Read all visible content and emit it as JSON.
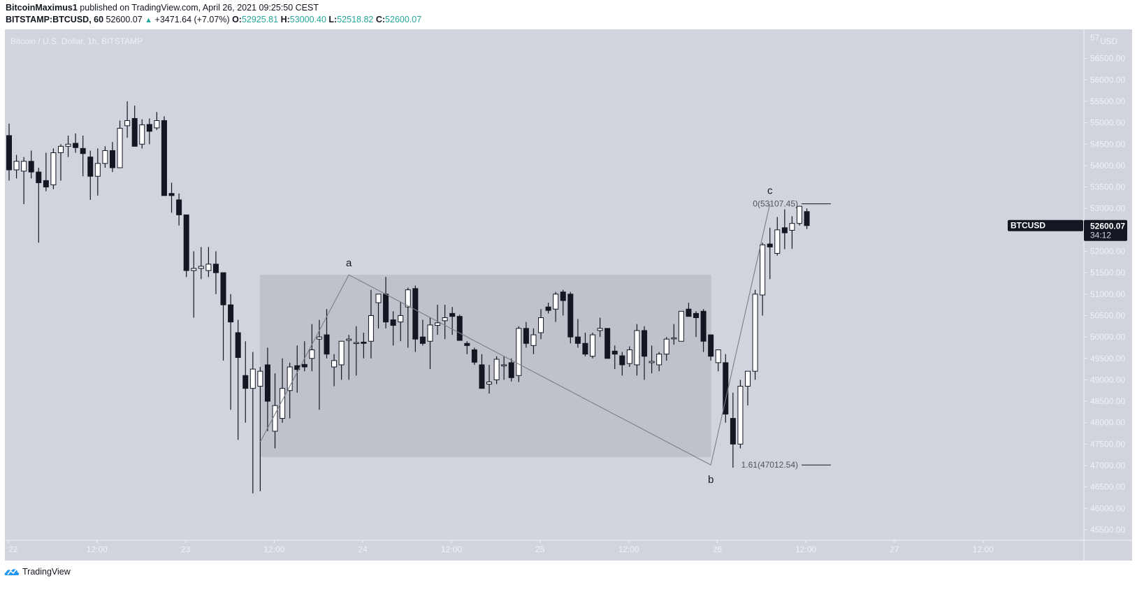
{
  "header": {
    "author": "BitcoinMaximus1",
    "published_text": "published on TradingView.com, April 26, 2021 09:25:50 CEST",
    "symbol": "BITSTAMP:BTCUSD, 60",
    "last": "52600.07",
    "change": "+3471.64 (+7.07%)",
    "o_label": "O:",
    "o": "52925.81",
    "h_label": "H:",
    "h": "53000.40",
    "l_label": "L:",
    "l": "52518.82",
    "c_label": "C:",
    "c": "52600.07"
  },
  "legend": {
    "title": "Bitcoin / U.S. Dollar, 1h, BITSTAMP"
  },
  "price_axis": {
    "currency": "USD",
    "top_partial": "57",
    "labels": [
      "56500.00",
      "56000.00",
      "55500.00",
      "55000.00",
      "54500.00",
      "54000.00",
      "53500.00",
      "53000.00",
      "52000.00",
      "51500.00",
      "51000.00",
      "50500.00",
      "50000.00",
      "49500.00",
      "49000.00",
      "48500.00",
      "48000.00",
      "47500.00",
      "47000.00",
      "46500.00",
      "46000.00",
      "45500.00"
    ],
    "current_symbol": "BTCUSD",
    "current_price": "52600.07",
    "countdown": "34:12"
  },
  "time_axis": {
    "labels": [
      "22",
      "12:00",
      "23",
      "12:00",
      "24",
      "12:00",
      "25",
      "12:00",
      "26",
      "12:00",
      "27",
      "12:00"
    ]
  },
  "annotations": {
    "wave_a": "a",
    "wave_b": "b",
    "wave_c": "c",
    "fib_0": "0(53107.45)",
    "fib_161": "1.61(47012.54)"
  },
  "footer": {
    "brand": "TradingView"
  },
  "colors": {
    "background": "#d1d4dc",
    "bull_body": "#ffffff",
    "bear_body": "#131722",
    "range_box": "#bfc2ca",
    "up_text": "#26a69a"
  },
  "chart_data": {
    "type": "candlestick",
    "title": "Bitcoin / U.S. Dollar, 1h, BITSTAMP",
    "symbol": "BITSTAMP:BTCUSD",
    "interval": "1h",
    "ylabel": "USD",
    "ylim": [
      45300,
      57000
    ],
    "x_ticks": [
      "22",
      "12:00",
      "23",
      "12:00",
      "24",
      "12:00",
      "25",
      "12:00",
      "26",
      "12:00",
      "27",
      "12:00"
    ],
    "candle_format": "[open, high, low, close]",
    "candles": [
      [
        54700,
        54980,
        53650,
        53900
      ],
      [
        53900,
        54250,
        53700,
        54100
      ],
      [
        53870,
        54200,
        53100,
        54100
      ],
      [
        54100,
        54350,
        53700,
        53850
      ],
      [
        53850,
        53950,
        52200,
        53600
      ],
      [
        53650,
        54300,
        53400,
        53500
      ],
      [
        53550,
        54400,
        53450,
        54300
      ],
      [
        54300,
        54500,
        53650,
        54450
      ],
      [
        54450,
        54700,
        54200,
        54500
      ],
      [
        54520,
        54750,
        54300,
        54420
      ],
      [
        54400,
        54700,
        53750,
        54280
      ],
      [
        54200,
        54350,
        53200,
        53750
      ],
      [
        53750,
        54400,
        53300,
        54050
      ],
      [
        54050,
        54450,
        53950,
        54350
      ],
      [
        54350,
        54550,
        53850,
        53950
      ],
      [
        53950,
        55050,
        53950,
        54870
      ],
      [
        54930,
        55500,
        54650,
        55050
      ],
      [
        55100,
        55400,
        54450,
        54450
      ],
      [
        54500,
        55080,
        54400,
        54950
      ],
      [
        54960,
        55100,
        54500,
        54800
      ],
      [
        54880,
        55250,
        54830,
        55050
      ],
      [
        55050,
        55150,
        53300,
        53300
      ],
      [
        53350,
        53600,
        52900,
        53300
      ],
      [
        53200,
        53350,
        52600,
        52850
      ],
      [
        52850,
        52850,
        51400,
        51550
      ],
      [
        51550,
        52000,
        50450,
        51600
      ],
      [
        51600,
        52100,
        51350,
        51650
      ],
      [
        51550,
        52100,
        51400,
        51700
      ],
      [
        51700,
        52000,
        51000,
        51500
      ],
      [
        51500,
        51500,
        49450,
        50750
      ],
      [
        50750,
        51000,
        48300,
        50350
      ],
      [
        50100,
        50400,
        47600,
        49520
      ],
      [
        49100,
        49900,
        48000,
        48800
      ],
      [
        48800,
        49650,
        46350,
        49250
      ],
      [
        48850,
        49300,
        46400,
        49200
      ],
      [
        49350,
        49750,
        47800,
        48500
      ],
      [
        47800,
        49150,
        47400,
        48400
      ],
      [
        48100,
        49500,
        48000,
        48800
      ],
      [
        48750,
        49400,
        48100,
        49300
      ],
      [
        49330,
        49800,
        48700,
        49240
      ],
      [
        49360,
        49900,
        49200,
        49300
      ],
      [
        49500,
        50300,
        49200,
        49700
      ],
      [
        49950,
        50400,
        48300,
        50000
      ],
      [
        50050,
        50650,
        49500,
        49600
      ],
      [
        49300,
        49600,
        48850,
        49450
      ],
      [
        49350,
        49900,
        49000,
        49900
      ],
      [
        49920,
        50050,
        49000,
        49950
      ],
      [
        49870,
        50250,
        49100,
        49870
      ],
      [
        49880,
        50100,
        49500,
        49850
      ],
      [
        49900,
        51100,
        49500,
        50500
      ],
      [
        50800,
        51000,
        50200,
        51000
      ],
      [
        51000,
        51400,
        50200,
        50350
      ],
      [
        50400,
        50600,
        49800,
        50270
      ],
      [
        50350,
        50820,
        49900,
        50500
      ],
      [
        50700,
        51150,
        49750,
        51100
      ],
      [
        51130,
        51200,
        49650,
        49950
      ],
      [
        50000,
        50400,
        49800,
        49850
      ],
      [
        49900,
        50450,
        49250,
        50280
      ],
      [
        50270,
        50750,
        50050,
        50330
      ],
      [
        50380,
        50750,
        49950,
        50450
      ],
      [
        50550,
        50700,
        50050,
        50480
      ],
      [
        50480,
        50520,
        50000,
        49920
      ],
      [
        49850,
        49900,
        49600,
        49800
      ],
      [
        49700,
        49750,
        49350,
        49410
      ],
      [
        49350,
        49600,
        48900,
        48800
      ],
      [
        48900,
        49350,
        48680,
        48950
      ],
      [
        49000,
        49550,
        48900,
        49480
      ],
      [
        49350,
        49550,
        49000,
        49350
      ],
      [
        49400,
        49500,
        48960,
        49050
      ],
      [
        49100,
        50250,
        48950,
        50200
      ],
      [
        50200,
        50350,
        49750,
        49850
      ],
      [
        49800,
        50200,
        49600,
        50050
      ],
      [
        50100,
        50650,
        49950,
        50450
      ],
      [
        50700,
        50800,
        50550,
        50620
      ],
      [
        50650,
        51050,
        50350,
        51000
      ],
      [
        51050,
        51100,
        50500,
        50850
      ],
      [
        51000,
        51050,
        49850,
        50000
      ],
      [
        50000,
        50420,
        49750,
        49850
      ],
      [
        49850,
        50100,
        49550,
        49600
      ],
      [
        49550,
        50100,
        49500,
        50050
      ],
      [
        50150,
        50450,
        50000,
        50200
      ],
      [
        50200,
        50200,
        49550,
        49500
      ],
      [
        49670,
        49800,
        49250,
        49600
      ],
      [
        49560,
        49650,
        49100,
        49350
      ],
      [
        49380,
        49780,
        49300,
        49700
      ],
      [
        49350,
        50300,
        49100,
        50150
      ],
      [
        50150,
        50250,
        49000,
        49550
      ],
      [
        49400,
        49800,
        49150,
        49430
      ],
      [
        49350,
        49650,
        49200,
        49600
      ],
      [
        49600,
        50000,
        49450,
        49950
      ],
      [
        49960,
        50300,
        49820,
        49980
      ],
      [
        49900,
        50600,
        49900,
        50600
      ],
      [
        50650,
        50800,
        50500,
        50480
      ],
      [
        50550,
        50600,
        50000,
        50450
      ],
      [
        50600,
        50650,
        49650,
        49900
      ],
      [
        50050,
        50050,
        49450,
        49550
      ],
      [
        49400,
        49700,
        49200,
        49700
      ],
      [
        49400,
        49600,
        48000,
        48200
      ],
      [
        48100,
        48700,
        46950,
        47500
      ],
      [
        47500,
        49000,
        47400,
        48850
      ],
      [
        48850,
        49200,
        48400,
        49200
      ],
      [
        49200,
        51100,
        49000,
        51000
      ],
      [
        50980,
        52200,
        50500,
        52150
      ],
      [
        52170,
        52550,
        51350,
        52100
      ],
      [
        51950,
        52800,
        51900,
        52500
      ],
      [
        52550,
        52980,
        52050,
        52430
      ],
      [
        52490,
        52820,
        52060,
        52650
      ],
      [
        52650,
        53050,
        52600,
        53050
      ],
      [
        52926,
        53000,
        52519,
        52600
      ]
    ],
    "drawings": {
      "range_rectangle": {
        "x_start_candle": 34,
        "x_end_candle": 95,
        "top": 51450,
        "bottom": 47200
      },
      "wave_path": [
        {
          "label": "",
          "candle": 34,
          "price": 47550
        },
        {
          "label": "a",
          "candle": 46,
          "price": 51450
        },
        {
          "label": "b",
          "candle": 95,
          "price": 47012.54
        },
        {
          "label": "c",
          "candle": 103,
          "price": 53107.45
        }
      ],
      "fib_levels": [
        {
          "label": "0(53107.45)",
          "price": 53107.45
        },
        {
          "label": "1.61(47012.54)",
          "price": 47012.54
        }
      ]
    },
    "last_price": 52600.07
  }
}
